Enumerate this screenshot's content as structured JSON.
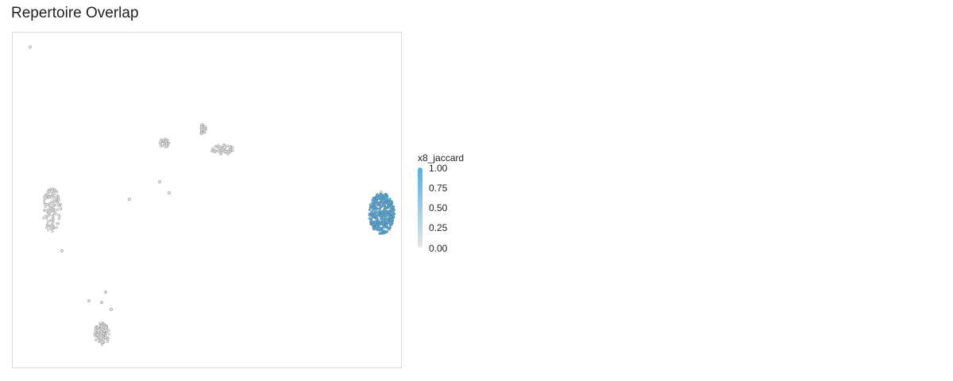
{
  "chart_data": {
    "type": "scatter",
    "title": "Repertoire Overlap",
    "xlabel": "",
    "ylabel": "",
    "grid": false,
    "legend": {
      "title": "x8_jaccard",
      "placement": "right",
      "ticks": [
        "1.00",
        "0.75",
        "0.50",
        "0.25",
        "0.00"
      ],
      "low_color": "#e4e4e4",
      "high_color": "#56b1e4"
    },
    "xlim": [
      0,
      100
    ],
    "ylim": [
      0,
      100
    ],
    "clusters": [
      {
        "x": 49,
        "y": 71,
        "value": 0.0
      },
      {
        "x": 39,
        "y": 67,
        "value": 0.0
      },
      {
        "x": 10,
        "y": 47,
        "value": 0.0
      },
      {
        "x": 23,
        "y": 10,
        "value": 0.0
      },
      {
        "x": 54,
        "y": 65,
        "value": 0.0
      },
      {
        "x": 95,
        "y": 46,
        "value": 1.0
      }
    ]
  }
}
